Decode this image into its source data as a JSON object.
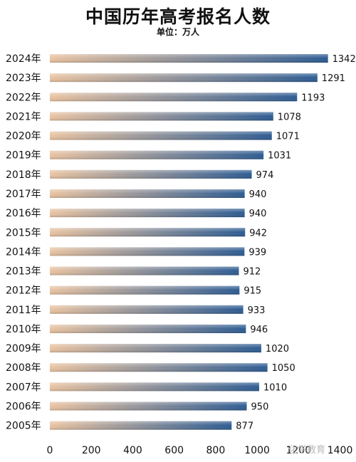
{
  "chart_data": {
    "type": "bar",
    "orientation": "horizontal",
    "title": "中国历年高考报名人数",
    "subtitle": "单位：万人",
    "categories": [
      "2024年",
      "2023年",
      "2022年",
      "2021年",
      "2020年",
      "2019年",
      "2018年",
      "2017年",
      "2016年",
      "2015年",
      "2014年",
      "2013年",
      "2012年",
      "2011年",
      "2010年",
      "2009年",
      "2008年",
      "2007年",
      "2006年",
      "2005年"
    ],
    "values": [
      1342,
      1291,
      1193,
      1078,
      1071,
      1031,
      974,
      940,
      940,
      942,
      939,
      912,
      915,
      933,
      946,
      1020,
      1050,
      1010,
      950,
      877
    ],
    "x_ticks": [
      "0",
      "200",
      "400",
      "600",
      "800",
      "1000",
      "1200",
      "1400"
    ],
    "xlim": [
      0,
      1400
    ],
    "grid": false,
    "legend": "none",
    "colors": {
      "bar_start": "#e9c3a1",
      "bar_end": "#2c5b92",
      "text": "#111111"
    }
  },
  "watermark": "化学教育"
}
